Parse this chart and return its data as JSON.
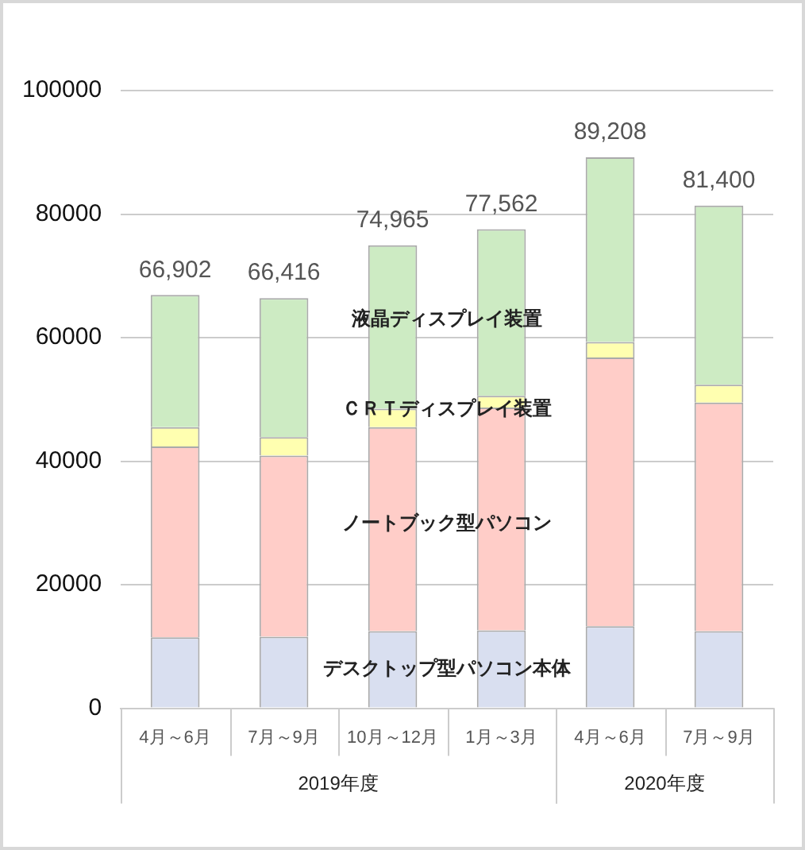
{
  "chart_data": {
    "type": "bar",
    "stacked": true,
    "categories": [
      "4月～6月",
      "7月～9月",
      "10月～12月",
      "1月～3月",
      "4月～6月",
      "7月～9月"
    ],
    "series": [
      {
        "name": "デスクトップ型パソコン本体",
        "color": "#d9dff0",
        "values": [
          11500,
          11600,
          12500,
          12600,
          13300,
          12500
        ]
      },
      {
        "name": "ノートブック型パソコン",
        "color": "#ffcdc8",
        "values": [
          30900,
          29300,
          33000,
          36100,
          43500,
          37000
        ]
      },
      {
        "name": "ＣＲＴディスプレイ装置",
        "color": "#ffffb0",
        "values": [
          3100,
          3000,
          3000,
          1900,
          2500,
          2900
        ]
      },
      {
        "name": "液晶ディスプレイ装置",
        "color": "#cdebc3",
        "values": [
          21402,
          22516,
          26465,
          26962,
          29908,
          29000
        ]
      }
    ],
    "totals": [
      "66,902",
      "66,416",
      "74,965",
      "77,562",
      "89,208",
      "81,400"
    ],
    "annotations": [
      "2019年度",
      "2020年度"
    ],
    "ylim": [
      0,
      100000
    ],
    "yticks": [
      0,
      20000,
      40000,
      60000,
      80000,
      100000
    ],
    "grid": "y",
    "legend": false
  }
}
